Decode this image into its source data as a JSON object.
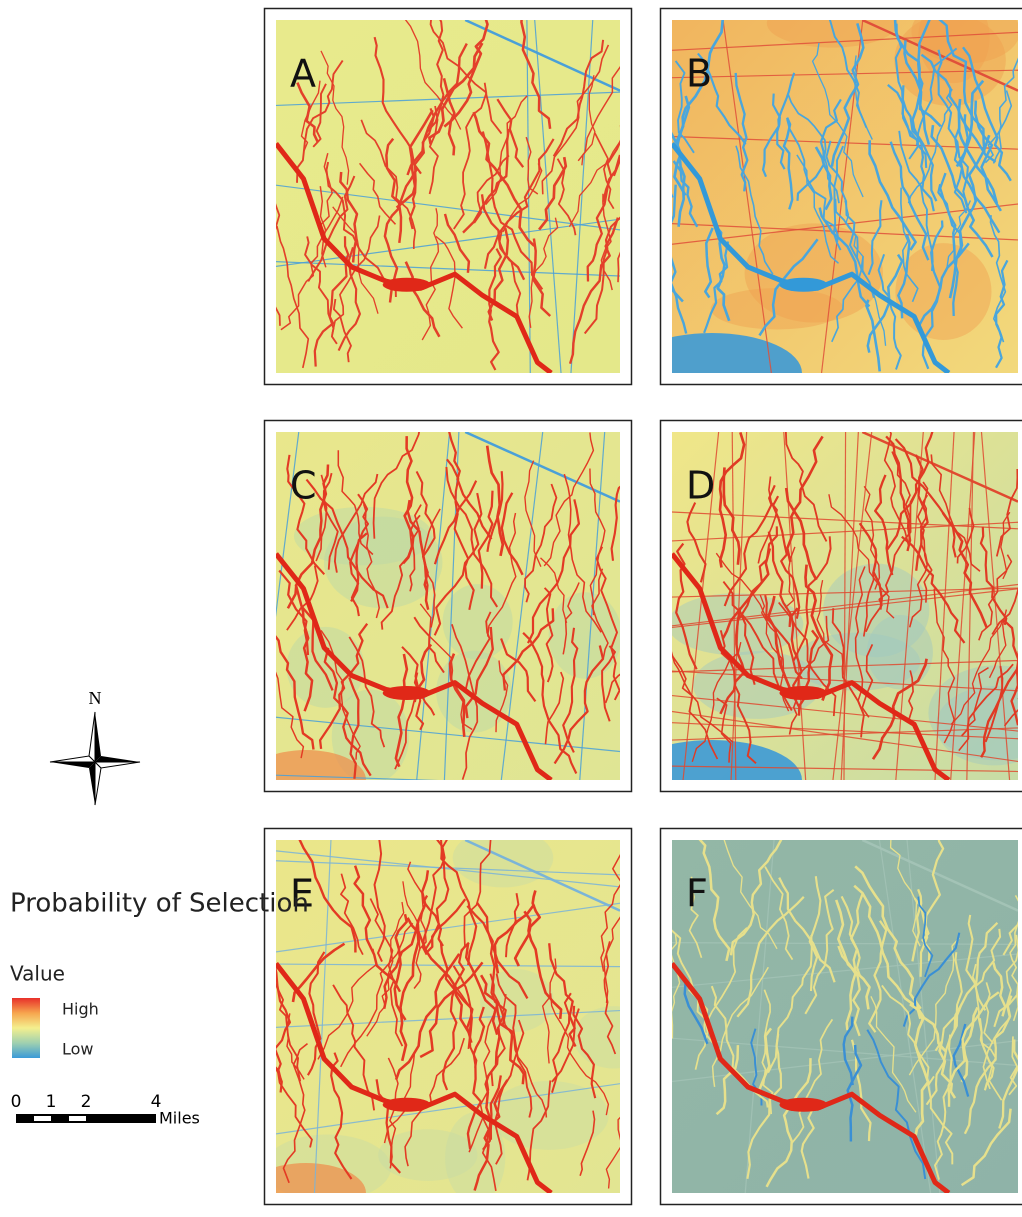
{
  "panels": [
    {
      "label": "A"
    },
    {
      "label": "B"
    },
    {
      "label": "C"
    },
    {
      "label": "D"
    },
    {
      "label": "E"
    },
    {
      "label": "F"
    }
  ],
  "north_arrow": {
    "label": "N"
  },
  "legend": {
    "title": "Probability of Selection",
    "field": "Value",
    "high": "High",
    "low": "Low"
  },
  "scale_bar": {
    "labels": [
      "0",
      "1",
      "2",
      "4"
    ],
    "unit": "Miles"
  }
}
